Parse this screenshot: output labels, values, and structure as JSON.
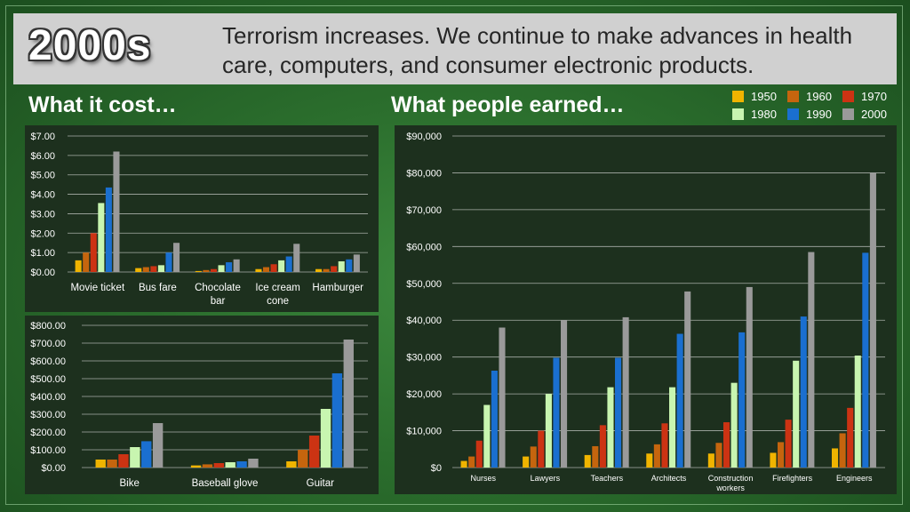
{
  "header": {
    "era": "2000s",
    "headline": "Terrorism increases. We continue to make advances in health care, computers, and consumer electronic products."
  },
  "sections": {
    "cost_title": "What it cost…",
    "earned_title": "What people earned…"
  },
  "colors": {
    "1950": "#f0b400",
    "1960": "#c5650e",
    "1970": "#cc3313",
    "1980": "#c8f5b0",
    "1990": "#1a6fd0",
    "2000": "#9a9a9a"
  },
  "legend": [
    "1950",
    "1960",
    "1970",
    "1980",
    "1990",
    "2000"
  ],
  "chart_data": [
    {
      "type": "bar",
      "id": "small-items",
      "title": "What it cost…",
      "categories": [
        [
          "Movie ticket"
        ],
        [
          "Bus fare"
        ],
        [
          "Chocolate",
          "bar"
        ],
        [
          "Ice cream",
          "cone"
        ],
        [
          "Hamburger"
        ]
      ],
      "ylim": [
        0,
        7
      ],
      "ytick_step": 1,
      "ytick_labels": [
        "$0.00",
        "$1.00",
        "$2.00",
        "$3.00",
        "$4.00",
        "$5.00",
        "$6.00",
        "$7.00"
      ],
      "series": [
        {
          "name": "1950",
          "values": [
            0.6,
            0.2,
            0.05,
            0.15,
            0.15
          ]
        },
        {
          "name": "1960",
          "values": [
            1.0,
            0.25,
            0.1,
            0.25,
            0.15
          ]
        },
        {
          "name": "1970",
          "values": [
            2.0,
            0.3,
            0.15,
            0.4,
            0.3
          ]
        },
        {
          "name": "1980",
          "values": [
            3.55,
            0.35,
            0.35,
            0.6,
            0.55
          ]
        },
        {
          "name": "1990",
          "values": [
            4.35,
            1.0,
            0.5,
            0.8,
            0.65
          ]
        },
        {
          "name": "2000",
          "values": [
            6.2,
            1.5,
            0.65,
            1.45,
            0.9
          ]
        }
      ]
    },
    {
      "type": "bar",
      "id": "large-items",
      "title": "What it cost…",
      "categories": [
        [
          "Bike"
        ],
        [
          "Baseball glove"
        ],
        [
          "Guitar"
        ]
      ],
      "ylim": [
        0,
        800
      ],
      "ytick_step": 100,
      "ytick_labels": [
        "$0.00",
        "$100.00",
        "$200.00",
        "$300.00",
        "$400.00",
        "$500.00",
        "$600.00",
        "$700.00",
        "$800.00"
      ],
      "series": [
        {
          "name": "1950",
          "values": [
            45,
            12,
            35
          ]
        },
        {
          "name": "1960",
          "values": [
            45,
            18,
            100
          ]
        },
        {
          "name": "1970",
          "values": [
            75,
            25,
            180
          ]
        },
        {
          "name": "1980",
          "values": [
            115,
            30,
            330
          ]
        },
        {
          "name": "1990",
          "values": [
            148,
            35,
            530
          ]
        },
        {
          "name": "2000",
          "values": [
            250,
            50,
            720
          ]
        }
      ]
    },
    {
      "type": "bar",
      "id": "earnings",
      "title": "What people earned…",
      "categories": [
        [
          "Nurses"
        ],
        [
          "Lawyers"
        ],
        [
          "Teachers"
        ],
        [
          "Architects"
        ],
        [
          "Construction",
          "workers"
        ],
        [
          "Firefighters"
        ],
        [
          "Engineers"
        ]
      ],
      "ylim": [
        0,
        90000
      ],
      "ytick_step": 10000,
      "ytick_labels": [
        "$0",
        "$10,000",
        "$20,000",
        "$30,000",
        "$40,000",
        "$50,000",
        "$60,000",
        "$70,000",
        "$80,000",
        "$90,000"
      ],
      "series": [
        {
          "name": "1950",
          "values": [
            1800,
            3000,
            3400,
            3800,
            3800,
            4000,
            5200
          ]
        },
        {
          "name": "1960",
          "values": [
            3000,
            5700,
            5800,
            6300,
            6700,
            6900,
            9300
          ]
        },
        {
          "name": "1970",
          "values": [
            7300,
            10000,
            11500,
            12000,
            12300,
            13000,
            16200
          ]
        },
        {
          "name": "1980",
          "values": [
            17000,
            20000,
            21800,
            21800,
            23000,
            29000,
            30400
          ]
        },
        {
          "name": "1990",
          "values": [
            26300,
            29800,
            29800,
            36300,
            36700,
            41000,
            58300
          ]
        },
        {
          "name": "2000",
          "values": [
            38000,
            40000,
            40800,
            47800,
            49000,
            58500,
            80000
          ]
        }
      ]
    }
  ]
}
